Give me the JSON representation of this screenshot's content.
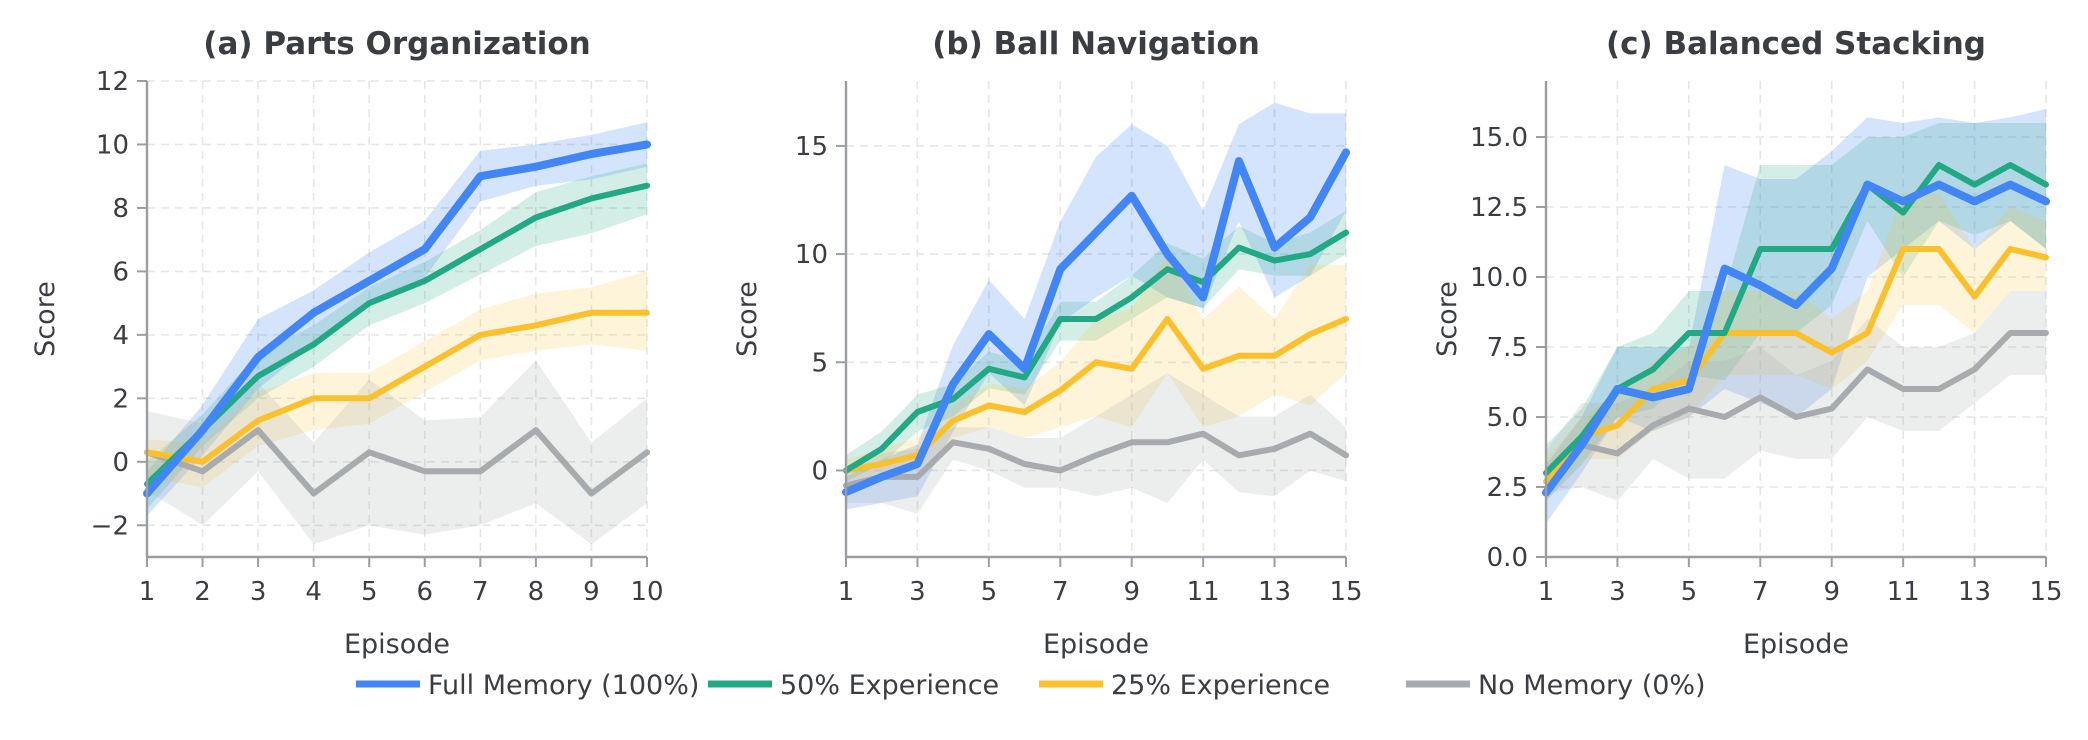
{
  "legend": [
    {
      "label": "Full Memory (100%)",
      "color": "#4285f4"
    },
    {
      "label": "50% Experience",
      "color": "#22a884"
    },
    {
      "label": "25% Experience",
      "color": "#fbc02d"
    },
    {
      "label": "No Memory (0%)",
      "color": "#a7abae"
    }
  ],
  "chart_data": [
    {
      "type": "line",
      "title": "(a) Parts Organization",
      "xlabel": "Episode",
      "ylabel": "Score",
      "xlim": [
        1,
        10
      ],
      "ylim": [
        -3,
        12
      ],
      "xticks": [
        "1",
        "2",
        "3",
        "4",
        "5",
        "6",
        "7",
        "8",
        "9",
        "10"
      ],
      "yticks": [
        "−2",
        "0",
        "2",
        "4",
        "6",
        "8",
        "10",
        "12"
      ],
      "x": [
        1,
        2,
        3,
        4,
        5,
        6,
        7,
        8,
        9,
        10
      ],
      "grid": true,
      "series": [
        {
          "name": "Full Memory (100%)",
          "values": [
            -1.0,
            1.0,
            3.3,
            4.7,
            5.7,
            6.7,
            9.0,
            9.3,
            9.7,
            10.0
          ],
          "lower": [
            -1.7,
            0.2,
            2.3,
            3.7,
            4.9,
            5.8,
            8.2,
            8.7,
            8.9,
            9.3
          ],
          "upper": [
            -0.3,
            1.8,
            4.5,
            5.4,
            6.6,
            7.6,
            9.8,
            10.0,
            10.3,
            10.7
          ]
        },
        {
          "name": "50% Experience",
          "values": [
            -0.7,
            1.0,
            2.7,
            3.7,
            5.0,
            5.7,
            6.7,
            7.7,
            8.3,
            8.7
          ],
          "lower": [
            -1.5,
            0.5,
            2.0,
            3.0,
            4.3,
            5.0,
            5.9,
            6.8,
            7.2,
            7.8
          ],
          "upper": [
            0.0,
            1.5,
            3.4,
            4.3,
            5.5,
            6.3,
            7.3,
            8.5,
            9.0,
            9.4
          ]
        },
        {
          "name": "25% Experience",
          "values": [
            0.3,
            0.0,
            1.3,
            2.0,
            2.0,
            3.0,
            4.0,
            4.3,
            4.7,
            4.7
          ],
          "lower": [
            -0.5,
            -0.8,
            0.5,
            1.0,
            1.2,
            2.2,
            3.2,
            3.5,
            3.7,
            3.5
          ],
          "upper": [
            0.7,
            0.6,
            2.2,
            2.8,
            2.8,
            3.8,
            4.8,
            5.3,
            5.5,
            6.0
          ]
        },
        {
          "name": "No Memory (0%)",
          "values": [
            0.3,
            -0.3,
            1.0,
            -1.0,
            0.3,
            -0.3,
            -0.3,
            1.0,
            -1.0,
            0.3
          ],
          "lower": [
            -0.9,
            -2.0,
            -0.3,
            -2.6,
            -2.0,
            -2.3,
            -2.0,
            -1.3,
            -2.6,
            -1.3
          ],
          "upper": [
            1.6,
            1.2,
            2.5,
            0.6,
            2.6,
            1.3,
            1.4,
            3.2,
            0.6,
            2.0
          ]
        }
      ]
    },
    {
      "type": "line",
      "title": "(b) Ball Navigation",
      "xlabel": "Episode",
      "ylabel": "Score",
      "xlim": [
        1,
        15
      ],
      "ylim": [
        -4,
        18
      ],
      "xticks": [
        "1",
        "3",
        "5",
        "7",
        "9",
        "11",
        "13",
        "15"
      ],
      "yticks": [
        "0",
        "5",
        "10",
        "15"
      ],
      "x": [
        1,
        2,
        3,
        4,
        5,
        6,
        7,
        8,
        9,
        10,
        11,
        12,
        13,
        14,
        15
      ],
      "grid": true,
      "series": [
        {
          "name": "Full Memory (100%)",
          "values": [
            -1.0,
            -0.3,
            0.3,
            4.0,
            6.3,
            4.7,
            9.3,
            11.0,
            12.7,
            10.0,
            8.0,
            14.3,
            10.3,
            11.7,
            14.7
          ],
          "lower": [
            -1.8,
            -1.5,
            -1.2,
            1.8,
            4.5,
            3.0,
            6.8,
            8.0,
            9.0,
            8.0,
            7.5,
            11.5,
            8.0,
            9.0,
            12.0
          ],
          "upper": [
            -0.3,
            0.5,
            1.2,
            5.8,
            8.8,
            7.0,
            11.5,
            14.5,
            16.0,
            15.0,
            12.0,
            16.0,
            17.0,
            16.5,
            16.5
          ]
        },
        {
          "name": "50% Experience",
          "values": [
            0.0,
            1.0,
            2.7,
            3.3,
            4.7,
            4.3,
            7.0,
            7.0,
            8.0,
            9.3,
            8.7,
            10.3,
            9.7,
            10.0,
            11.0
          ],
          "lower": [
            -0.5,
            0.3,
            1.8,
            2.5,
            3.8,
            3.5,
            6.0,
            6.0,
            7.0,
            8.0,
            7.5,
            9.3,
            9.0,
            9.0,
            10.0
          ],
          "upper": [
            0.7,
            1.8,
            3.5,
            4.0,
            5.5,
            5.0,
            7.8,
            7.8,
            9.0,
            10.5,
            9.8,
            11.3,
            10.5,
            11.0,
            12.0
          ]
        },
        {
          "name": "25% Experience",
          "values": [
            0.0,
            0.3,
            0.7,
            2.3,
            3.0,
            2.7,
            3.7,
            5.0,
            4.7,
            7.0,
            4.7,
            5.3,
            5.3,
            6.3,
            7.0
          ],
          "lower": [
            -0.5,
            -0.3,
            0.0,
            1.5,
            2.0,
            1.5,
            2.0,
            2.5,
            2.0,
            4.5,
            2.0,
            2.5,
            3.5,
            3.0,
            4.5
          ],
          "upper": [
            0.5,
            1.0,
            1.5,
            3.0,
            4.0,
            3.8,
            5.0,
            7.0,
            7.5,
            10.0,
            7.0,
            8.5,
            7.0,
            9.5,
            9.5
          ]
        },
        {
          "name": "No Memory (0%)",
          "values": [
            -0.7,
            -0.3,
            -0.3,
            1.3,
            1.0,
            0.3,
            0.0,
            0.7,
            1.3,
            1.3,
            1.7,
            0.7,
            1.0,
            1.7,
            0.7
          ],
          "lower": [
            -1.5,
            -1.5,
            -2.0,
            0.5,
            0.0,
            -0.8,
            -0.8,
            -1.2,
            -0.8,
            -1.5,
            0.5,
            -1.0,
            -1.2,
            0.0,
            -0.5
          ],
          "upper": [
            0.0,
            0.8,
            1.0,
            2.0,
            2.0,
            1.5,
            1.5,
            2.5,
            3.5,
            4.5,
            3.5,
            2.5,
            2.5,
            3.5,
            2.0
          ]
        }
      ]
    },
    {
      "type": "line",
      "title": "(c) Balanced Stacking",
      "xlabel": "Episode",
      "ylabel": "Score",
      "xlim": [
        1,
        15
      ],
      "ylim": [
        0,
        17
      ],
      "xticks": [
        "1",
        "3",
        "5",
        "7",
        "9",
        "11",
        "13",
        "15"
      ],
      "yticks": [
        "0.0",
        "2.5",
        "5.0",
        "7.5",
        "10.0",
        "12.5",
        "15.0"
      ],
      "x": [
        1,
        2,
        3,
        4,
        5,
        6,
        7,
        8,
        9,
        10,
        11,
        12,
        13,
        14,
        15
      ],
      "grid": true,
      "series": [
        {
          "name": "Full Memory (100%)",
          "values": [
            2.3,
            4.0,
            6.0,
            5.7,
            6.0,
            10.3,
            9.7,
            9.0,
            10.3,
            13.3,
            12.7,
            13.3,
            12.7,
            13.3,
            12.7
          ],
          "lower": [
            1.2,
            3.0,
            5.0,
            4.5,
            5.0,
            6.0,
            5.5,
            5.0,
            6.0,
            10.0,
            11.0,
            12.0,
            11.0,
            12.0,
            11.0
          ],
          "upper": [
            3.3,
            5.0,
            7.5,
            7.5,
            7.5,
            14.0,
            13.5,
            13.5,
            14.5,
            15.7,
            15.5,
            15.7,
            15.5,
            15.7,
            16.0
          ]
        },
        {
          "name": "50% Experience",
          "values": [
            3.0,
            4.3,
            6.0,
            6.7,
            8.0,
            8.0,
            11.0,
            11.0,
            11.0,
            13.3,
            12.3,
            14.0,
            13.3,
            14.0,
            13.3
          ],
          "lower": [
            2.0,
            3.3,
            5.0,
            5.3,
            6.5,
            6.3,
            8.0,
            8.0,
            9.0,
            12.0,
            10.0,
            12.0,
            11.5,
            12.0,
            11.0
          ],
          "upper": [
            4.0,
            5.3,
            7.5,
            8.0,
            9.5,
            9.5,
            14.0,
            14.0,
            14.0,
            15.0,
            15.0,
            15.5,
            15.5,
            15.5,
            15.5
          ]
        },
        {
          "name": "25% Experience",
          "values": [
            2.7,
            4.3,
            4.7,
            6.0,
            6.3,
            8.0,
            8.0,
            8.0,
            7.3,
            8.0,
            11.0,
            11.0,
            9.3,
            11.0,
            10.7
          ],
          "lower": [
            2.0,
            3.5,
            3.5,
            4.5,
            5.0,
            6.5,
            6.5,
            6.5,
            6.0,
            7.0,
            9.0,
            9.0,
            8.0,
            9.5,
            9.5
          ],
          "upper": [
            3.5,
            5.0,
            5.8,
            7.0,
            7.5,
            9.5,
            9.5,
            9.5,
            8.5,
            9.5,
            13.0,
            13.0,
            11.0,
            12.5,
            12.0
          ]
        },
        {
          "name": "No Memory (0%)",
          "values": [
            3.0,
            4.0,
            3.7,
            4.7,
            5.3,
            5.0,
            5.7,
            5.0,
            5.3,
            6.7,
            6.0,
            6.0,
            6.7,
            8.0,
            8.0
          ],
          "lower": [
            2.3,
            2.5,
            2.0,
            3.5,
            2.8,
            2.8,
            3.8,
            3.5,
            3.5,
            5.0,
            4.5,
            4.5,
            5.5,
            6.5,
            6.5
          ],
          "upper": [
            3.8,
            5.5,
            5.5,
            6.0,
            7.0,
            7.0,
            7.5,
            6.5,
            7.0,
            8.5,
            7.5,
            7.5,
            8.0,
            9.5,
            9.5
          ]
        }
      ]
    }
  ]
}
